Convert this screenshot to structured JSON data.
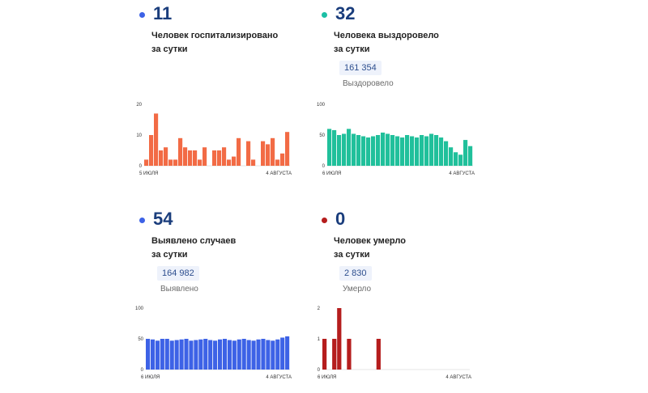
{
  "panels": [
    {
      "value": "11",
      "description": "Человек госпитализировано\nза сутки",
      "dot_color": "#3d62e6"
    },
    {
      "value": "32",
      "description": "Человека выздоровело\nза сутки",
      "total": "161 354",
      "total_label": "Выздоровело",
      "dot_color": "#1bbfa5"
    },
    {
      "value": "54",
      "description": "Выявлено случаев\nза сутки",
      "total": "164 982",
      "total_label": "Выявлено",
      "dot_color": "#3d62e6"
    },
    {
      "value": "0",
      "description": "Человек умерло\nза сутки",
      "total": "2 830",
      "total_label": "Умерло",
      "dot_color": "#b51d1d"
    }
  ],
  "chart_data": [
    {
      "type": "bar",
      "color": "#f26b45",
      "x_start_label": "5 ИЮЛЯ",
      "x_end_label": "4 АВГУСТА",
      "ylim": [
        0,
        20
      ],
      "y_ticks": [
        "0",
        "10",
        "20"
      ],
      "values": [
        2,
        10,
        17,
        5,
        6,
        2,
        2,
        9,
        6,
        5,
        5,
        2,
        6,
        0,
        5,
        5,
        6,
        2,
        3,
        9,
        0,
        8,
        2,
        0,
        8,
        7,
        9,
        2,
        4,
        11
      ]
    },
    {
      "type": "bar",
      "color": "#20c09b",
      "x_start_label": "6 ИЮЛЯ",
      "x_end_label": "4 АВГУСТА",
      "ylim": [
        0,
        100
      ],
      "y_ticks": [
        "0",
        "50",
        "100"
      ],
      "values": [
        60,
        58,
        50,
        52,
        60,
        52,
        50,
        48,
        46,
        48,
        50,
        54,
        52,
        50,
        48,
        46,
        50,
        48,
        46,
        50,
        48,
        52,
        50,
        46,
        40,
        30,
        22,
        18,
        42,
        32
      ]
    },
    {
      "type": "bar",
      "color": "#3d62e6",
      "x_start_label": "6 ИЮЛЯ",
      "x_end_label": "4 АВГУСТА",
      "ylim": [
        0,
        100
      ],
      "y_ticks": [
        "0",
        "50",
        "100"
      ],
      "values": [
        50,
        49,
        47,
        50,
        50,
        47,
        48,
        49,
        50,
        47,
        48,
        49,
        50,
        48,
        47,
        49,
        50,
        48,
        47,
        49,
        50,
        48,
        47,
        49,
        50,
        48,
        47,
        49,
        52,
        54
      ]
    },
    {
      "type": "bar",
      "color": "#b51d1d",
      "x_start_label": "6 ИЮЛЯ",
      "x_end_label": "4 АВГУСТА",
      "ylim": [
        0,
        2
      ],
      "y_ticks": [
        "0",
        "1",
        "2"
      ],
      "values": [
        1,
        0,
        1,
        2,
        0,
        1,
        0,
        0,
        0,
        0,
        0,
        1,
        0,
        0,
        0,
        0,
        0,
        0,
        0,
        0,
        0,
        0,
        0,
        0,
        0,
        0,
        0,
        0,
        0,
        0
      ]
    }
  ]
}
